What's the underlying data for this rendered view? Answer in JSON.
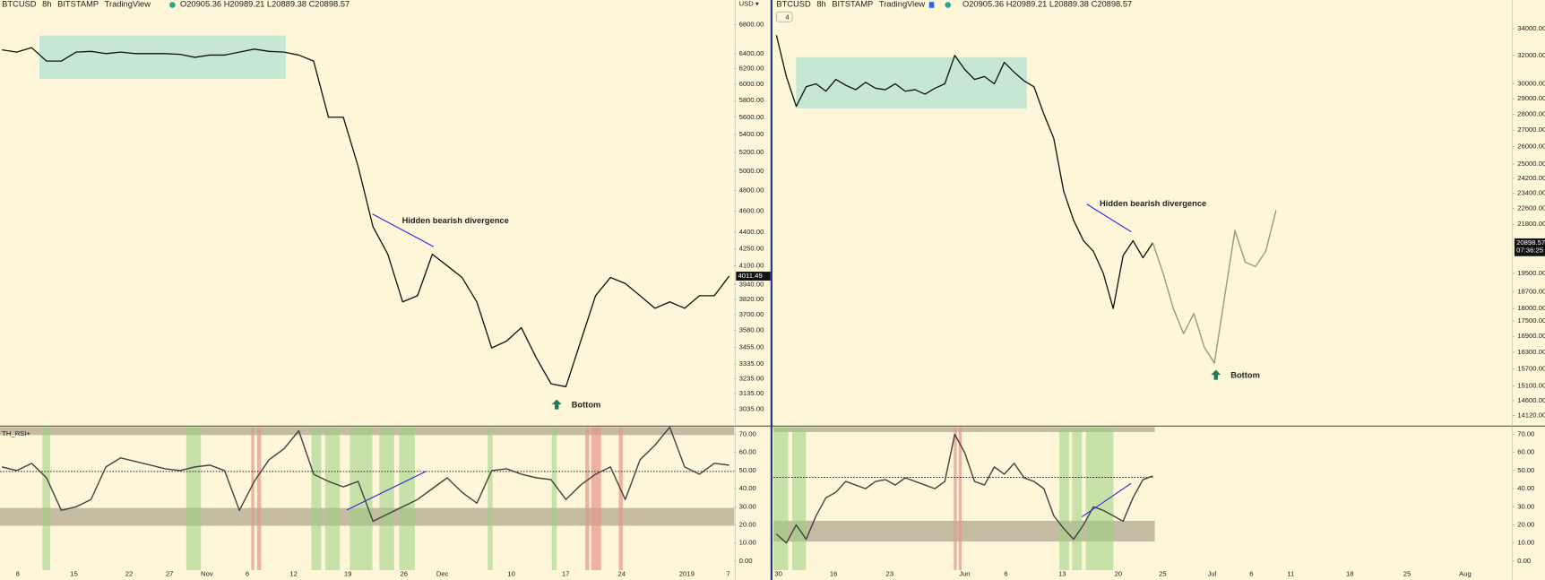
{
  "header": {
    "symbol": "BTCUSD",
    "interval": "8h",
    "exchange": "BITSTAMP",
    "source": "TradingView",
    "ohlc": "O20905.36 H20989.21 L20889.38 C20898.57",
    "badge": "4"
  },
  "chart_data": [
    {
      "type": "line",
      "log_scale": true,
      "axis_unit": "USD ▾",
      "ylim": [
        2940,
        6900
      ],
      "yticks": [
        {
          "value": 6800,
          "label": "6800.00"
        },
        {
          "value": 6400,
          "label": "6400.00"
        },
        {
          "value": 6200,
          "label": "6200.00"
        },
        {
          "value": 6000,
          "label": "6000.00"
        },
        {
          "value": 5800,
          "label": "5800.00"
        },
        {
          "value": 5600,
          "label": "5600.00"
        },
        {
          "value": 5400,
          "label": "5400.00"
        },
        {
          "value": 5200,
          "label": "5200.00"
        },
        {
          "value": 5000,
          "label": "5000.00"
        },
        {
          "value": 4800,
          "label": "4800.00"
        },
        {
          "value": 4600,
          "label": "4600.00"
        },
        {
          "value": 4400,
          "label": "4400.00"
        },
        {
          "value": 4250,
          "label": "4250.00"
        },
        {
          "value": 4100,
          "label": "4100.00"
        },
        {
          "value": 3940,
          "label": "3940.00"
        },
        {
          "value": 3820,
          "label": "3820.00"
        },
        {
          "value": 3700,
          "label": "3700.00"
        },
        {
          "value": 3580,
          "label": "3580.00"
        },
        {
          "value": 3455,
          "label": "3455.00"
        },
        {
          "value": 3335,
          "label": "3335.00"
        },
        {
          "value": 3235,
          "label": "3235.00"
        },
        {
          "value": 3135,
          "label": "3135.00"
        },
        {
          "value": 3035,
          "label": "3035.00"
        }
      ],
      "series": [
        {
          "color": "#111111",
          "values": [
            6450,
            6420,
            6480,
            6300,
            6300,
            6420,
            6430,
            6400,
            6420,
            6400,
            6400,
            6400,
            6390,
            6350,
            6380,
            6380,
            6420,
            6460,
            6430,
            6420,
            6380,
            6300,
            5600,
            5600,
            5050,
            4450,
            4200,
            3800,
            3850,
            4200,
            4100,
            4000,
            3800,
            3450,
            3500,
            3600,
            3380,
            3200,
            3180,
            3500,
            3850,
            4000,
            3950,
            3850,
            3750,
            3800,
            3750,
            3850,
            3850,
            4011
          ]
        }
      ],
      "annotation": "Hidden bearish divergence",
      "bottom_label": "Bottom",
      "last_price": 4011.49
    },
    {
      "type": "line",
      "title": "TH_RSI+",
      "ylim": [
        -5,
        74
      ],
      "yticks": [
        {
          "value": 70,
          "label": "70.00"
        },
        {
          "value": 60,
          "label": "60.00"
        },
        {
          "value": 50,
          "label": "50.00"
        },
        {
          "value": 40,
          "label": "40.00"
        },
        {
          "value": 30,
          "label": "30.00"
        },
        {
          "value": 20,
          "label": "20.00"
        },
        {
          "value": 10,
          "label": "10.00"
        },
        {
          "value": 0,
          "label": "0.00"
        }
      ],
      "series": [
        {
          "color": "#444444",
          "values": [
            52,
            50,
            54,
            46,
            28,
            30,
            34,
            52,
            57,
            55,
            53,
            51,
            50,
            52,
            53,
            50,
            28,
            44,
            56,
            62,
            72,
            48,
            44,
            41,
            44,
            22,
            26,
            30,
            34,
            40,
            46,
            38,
            32,
            50,
            51,
            48,
            46,
            45,
            34,
            42,
            48,
            52,
            34,
            56,
            64,
            74,
            52,
            48,
            54,
            53
          ]
        }
      ],
      "x_labels": [
        "8",
        "15",
        "22",
        "27",
        "Nov",
        "6",
        "12",
        "19",
        "26",
        "Dec",
        "10",
        "17",
        "24",
        "2019",
        "7"
      ]
    },
    {
      "type": "line",
      "log_scale": true,
      "ylim": [
        13840,
        34860
      ],
      "yticks": [
        {
          "value": 34000,
          "label": "34000.00"
        },
        {
          "value": 32000,
          "label": "32000.00"
        },
        {
          "value": 30000,
          "label": "30000.00"
        },
        {
          "value": 29000,
          "label": "29000.00"
        },
        {
          "value": 28000,
          "label": "28000.00"
        },
        {
          "value": 27000,
          "label": "27000.00"
        },
        {
          "value": 26000,
          "label": "26000.00"
        },
        {
          "value": 25000,
          "label": "25000.00"
        },
        {
          "value": 24200,
          "label": "24200.00"
        },
        {
          "value": 23400,
          "label": "23400.00"
        },
        {
          "value": 22600,
          "label": "22600.00"
        },
        {
          "value": 21800,
          "label": "21800.00"
        },
        {
          "value": 19500,
          "label": "19500.00"
        },
        {
          "value": 18700,
          "label": "18700.00"
        },
        {
          "value": 18000,
          "label": "18000.00"
        },
        {
          "value": 17500,
          "label": "17500.00"
        },
        {
          "value": 16900,
          "label": "16900.00"
        },
        {
          "value": 16300,
          "label": "16300.00"
        },
        {
          "value": 15700,
          "label": "15700.00"
        },
        {
          "value": 15100,
          "label": "15100.00"
        },
        {
          "value": 14600,
          "label": "14600.00"
        },
        {
          "value": 14120,
          "label": "14120.00"
        }
      ],
      "series": [
        {
          "color": "#111111",
          "values": [
            33500,
            30500,
            28500,
            29800,
            30000,
            29500,
            30300,
            29900,
            29600,
            30100,
            29700,
            29600,
            30000,
            29500,
            29600,
            29300,
            29700,
            30000,
            32000,
            31000,
            30300,
            30500,
            30000,
            31500,
            30800,
            30200,
            29800,
            28000,
            26500,
            23500,
            22000,
            21000,
            20500,
            19500,
            18000,
            20300,
            21000,
            20200,
            20900
          ]
        },
        {
          "color": "#9c9a84",
          "values": [
            20900,
            19500,
            18000,
            17000,
            17800,
            16500,
            15900,
            18500,
            21500,
            20000,
            19800,
            20500,
            22500
          ]
        }
      ],
      "annotation": "Hidden bearish divergence",
      "bottom_label": "Bottom",
      "last_price": 20898.57,
      "countdown": "07:36:25"
    },
    {
      "type": "line",
      "ylim": [
        -5,
        74
      ],
      "yticks": [
        {
          "value": 70,
          "label": "70.00"
        },
        {
          "value": 60,
          "label": "60.00"
        },
        {
          "value": 50,
          "label": "50.00"
        },
        {
          "value": 40,
          "label": "40.00"
        },
        {
          "value": 30,
          "label": "30.00"
        },
        {
          "value": 20,
          "label": "20.00"
        },
        {
          "value": 10,
          "label": "10.00"
        },
        {
          "value": 0,
          "label": "0.00"
        }
      ],
      "series": [
        {
          "color": "#444444",
          "values": [
            15,
            10,
            20,
            12,
            25,
            35,
            38,
            44,
            42,
            40,
            44,
            45,
            42,
            46,
            44,
            42,
            40,
            44,
            70,
            60,
            44,
            42,
            52,
            48,
            54,
            46,
            44,
            40,
            25,
            18,
            12,
            20,
            30,
            28,
            25,
            22,
            35,
            45,
            47
          ]
        }
      ],
      "x_labels": [
        "30",
        "16",
        "23",
        "Jun",
        "6",
        "13",
        "20",
        "25",
        "Jul",
        "6",
        "11",
        "18",
        "25",
        "Aug"
      ]
    }
  ]
}
